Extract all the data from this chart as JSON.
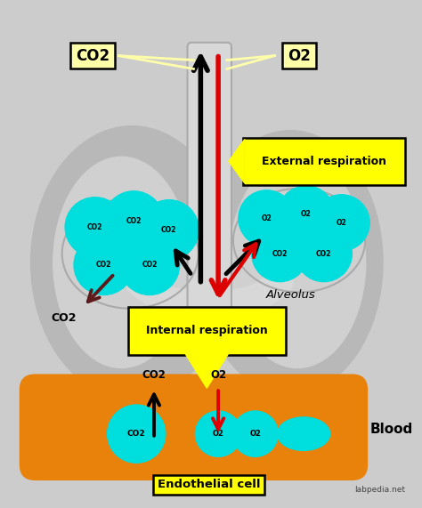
{
  "bg_color": "#cccccc",
  "fig_width": 4.74,
  "fig_height": 5.71,
  "lung_outer_color": "#b8b8b8",
  "lung_inner_color": "#d0d0d0",
  "trachea_color": "#d8d8d8",
  "trachea_edge": "#aaaaaa",
  "orange_blood_color": "#e8820a",
  "cyan_color": "#00dddd",
  "yellow_color": "#ffff00",
  "yellow_light": "#ffffaa",
  "black": "#000000",
  "red": "#dd0000",
  "dark_brown": "#5c1a1a",
  "gray_oval": "#aaaaaa",
  "label_co2_top": "CO2",
  "label_o2_top": "O2",
  "label_external": "External respiration",
  "label_internal": "Internal respiration",
  "label_alveolus": "Alveolus",
  "label_blood": "Blood",
  "label_endothelial": "Endothelial cell",
  "label_site": "labpedia.net"
}
